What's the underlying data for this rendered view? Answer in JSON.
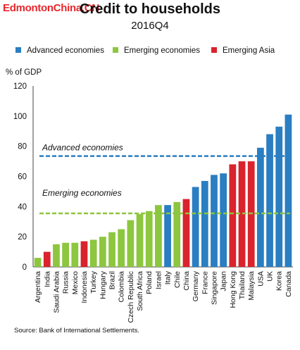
{
  "watermark": "EdmontonChina.CN",
  "chart_data": {
    "type": "bar",
    "title": "Credit to households",
    "subtitle": "2016Q4",
    "ylabel": "% of GDP",
    "ylim": [
      0,
      120
    ],
    "yticks": [
      0,
      20,
      40,
      60,
      80,
      100,
      120
    ],
    "grid": false,
    "legend_placement": "top",
    "groups": [
      {
        "name": "Advanced economies",
        "color": "#2a7ec1"
      },
      {
        "name": "Emerging economies",
        "color": "#8dc63f"
      },
      {
        "name": "Emerging Asia",
        "color": "#d9232d"
      }
    ],
    "categories": [
      "Argentina",
      "India",
      "Saudi Arabia",
      "Russia",
      "Mexico",
      "Indonesia",
      "Turkey",
      "Hungary",
      "Brazil",
      "Colombia",
      "Czech Republic",
      "South Africa",
      "Poland",
      "Israel",
      "Italy",
      "Chile",
      "China",
      "Germany",
      "France",
      "Singapore",
      "Japan",
      "Hong Kong",
      "Thailand",
      "Malaysia",
      "USA",
      "UK",
      "Korea",
      "Canada"
    ],
    "values": [
      6,
      10,
      15,
      16,
      16,
      17,
      18,
      20,
      23,
      25,
      31,
      35,
      37,
      41,
      41,
      43,
      45,
      53,
      57,
      61,
      62,
      68,
      70,
      70,
      79,
      88,
      93,
      101
    ],
    "group_of": [
      1,
      2,
      1,
      1,
      1,
      2,
      1,
      1,
      1,
      1,
      1,
      1,
      1,
      1,
      0,
      1,
      2,
      0,
      0,
      0,
      0,
      2,
      2,
      2,
      0,
      0,
      0,
      0
    ],
    "reference_lines": [
      {
        "label": "Advanced economies",
        "value": 73.5,
        "color": "#2a7ec1"
      },
      {
        "label": "Emerging economies",
        "value": 35.5,
        "color": "#8dc63f"
      }
    ],
    "source": "Source: Bank of International Settlements."
  }
}
